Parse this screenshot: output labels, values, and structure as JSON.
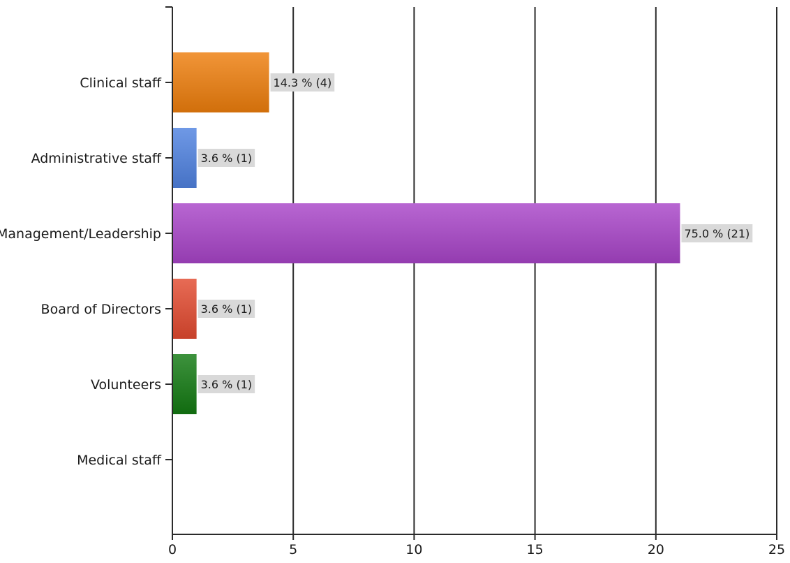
{
  "chart_data": {
    "type": "bar",
    "orientation": "horizontal",
    "categories": [
      "Clinical staff",
      "Administrative staff",
      "Management/Leadership",
      "Board of Directors",
      "Volunteers",
      "Medical staff"
    ],
    "values": [
      4,
      1,
      21,
      1,
      1,
      0
    ],
    "data_labels": [
      "14.3 % (4)",
      "3.6 % (1)",
      "75.0 % (21)",
      "3.6 % (1)",
      "3.6 % (1)",
      ""
    ],
    "colors": [
      "#ee7e0c",
      "#4f82e0",
      "#a844c8",
      "#e24a30",
      "#137a12",
      "#888888"
    ],
    "xlim": [
      0,
      25
    ],
    "xticks": [
      0,
      5,
      10,
      15,
      20,
      25
    ],
    "grid": true,
    "title": "",
    "xlabel": "",
    "ylabel": ""
  }
}
